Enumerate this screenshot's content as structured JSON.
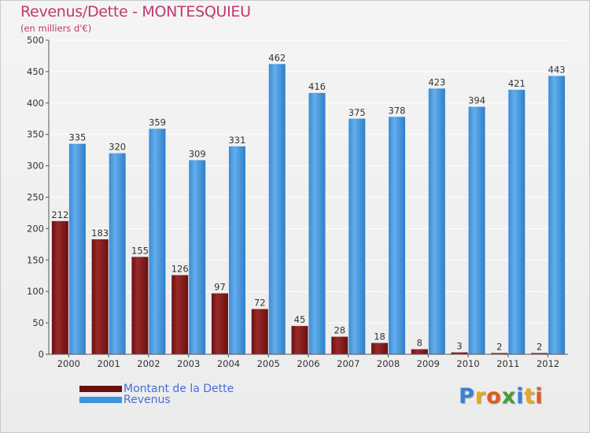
{
  "title": "Revenus/Dette - MONTESQUIEU",
  "subtitle": "(en milliers d'€)",
  "legend": {
    "debt_label": "Montant de la Dette",
    "revenue_label": "Revenus"
  },
  "logo": {
    "text": "Proxiti",
    "letters": [
      {
        "ch": "P",
        "color": "#3b7fd6"
      },
      {
        "ch": "r",
        "color": "#e8a81c"
      },
      {
        "ch": "o",
        "color": "#e35b1f"
      },
      {
        "ch": "x",
        "color": "#4a9c3a"
      },
      {
        "ch": "i",
        "color": "#3b7fd6"
      },
      {
        "ch": "t",
        "color": "#e8a81c"
      },
      {
        "ch": "i",
        "color": "#e35b1f"
      }
    ]
  },
  "colors": {
    "debt": "#7a1414",
    "debt_light": "#b84a4a",
    "revenue": "#3d93dd",
    "revenue_light": "#6cb3ee",
    "axis": "#555555",
    "grid": "#ffffff",
    "label": "#333333"
  },
  "chart_data": {
    "type": "bar",
    "title": "Revenus/Dette - MONTESQUIEU",
    "subtitle": "(en milliers d'€)",
    "categories": [
      "2000",
      "2001",
      "2002",
      "2003",
      "2004",
      "2005",
      "2006",
      "2007",
      "2008",
      "2009",
      "2010",
      "2011",
      "2012"
    ],
    "series": [
      {
        "name": "Montant de la Dette",
        "values": [
          212,
          183,
          155,
          126,
          97,
          72,
          45,
          28,
          18,
          8,
          3,
          2,
          2
        ]
      },
      {
        "name": "Revenus",
        "values": [
          335,
          320,
          359,
          309,
          331,
          462,
          416,
          375,
          378,
          423,
          394,
          421,
          443
        ]
      }
    ],
    "ylim": [
      0,
      500
    ],
    "yticks": [
      0,
      50,
      100,
      150,
      200,
      250,
      300,
      350,
      400,
      450,
      500
    ],
    "grid": true,
    "legend": "bottom-left"
  }
}
